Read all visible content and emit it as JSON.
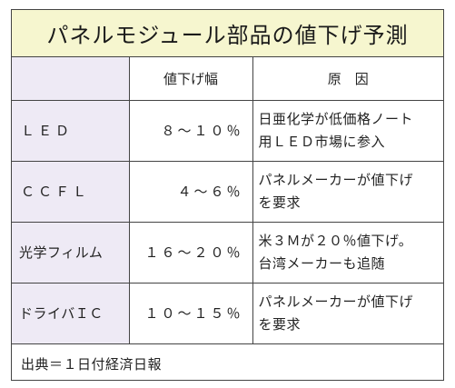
{
  "title": "パネルモジュール部品の値下げ予測",
  "headers": {
    "corner": "",
    "price_drop": "値下げ幅",
    "cause": "原　因"
  },
  "rows": [
    {
      "category": "ＬＥＤ",
      "range": "８～１０％",
      "reason_lines": [
        "日亜化学が低価格ノート",
        "用ＬＥＤ市場に参入"
      ]
    },
    {
      "category": "ＣＣＦＬ",
      "range": "４～６％",
      "reason_lines": [
        "パネルメーカーが値下げ",
        "を要求"
      ]
    },
    {
      "category": "光学フィルム",
      "range": "１６～２０％",
      "reason_lines": [
        "米３Ｍが２０％値下げ。",
        "台湾メーカーも追随"
      ]
    },
    {
      "category": "ドライバＩＣ",
      "range": "１０～１５％",
      "reason_lines": [
        "パネルメーカーが値下げ",
        "を要求"
      ]
    }
  ],
  "source": "出典＝１日付経済日報",
  "colors": {
    "title_bg": "#f6f6cf",
    "category_bg": "#eeeaf5",
    "border": "#444444"
  }
}
